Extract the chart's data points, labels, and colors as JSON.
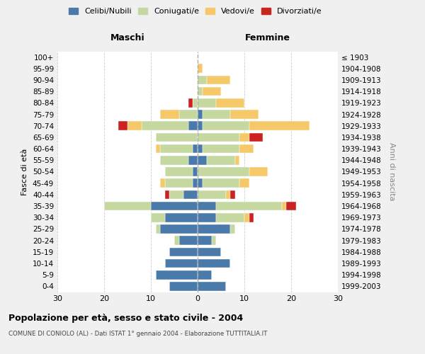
{
  "age_groups": [
    "0-4",
    "5-9",
    "10-14",
    "15-19",
    "20-24",
    "25-29",
    "30-34",
    "35-39",
    "40-44",
    "45-49",
    "50-54",
    "55-59",
    "60-64",
    "65-69",
    "70-74",
    "75-79",
    "80-84",
    "85-89",
    "90-94",
    "95-99",
    "100+"
  ],
  "birth_years": [
    "1999-2003",
    "1994-1998",
    "1989-1993",
    "1984-1988",
    "1979-1983",
    "1974-1978",
    "1969-1973",
    "1964-1968",
    "1959-1963",
    "1954-1958",
    "1949-1953",
    "1944-1948",
    "1939-1943",
    "1934-1938",
    "1929-1933",
    "1924-1928",
    "1919-1923",
    "1914-1918",
    "1909-1913",
    "1904-1908",
    "≤ 1903"
  ],
  "colors": {
    "celibi": "#4a7aaa",
    "coniugati": "#c5d8a0",
    "vedovi": "#f5c96a",
    "divorziati": "#cc2222"
  },
  "males": {
    "celibi": [
      6,
      9,
      7,
      6,
      4,
      8,
      7,
      10,
      3,
      1,
      1,
      2,
      1,
      0,
      2,
      0,
      0,
      0,
      0,
      0,
      0
    ],
    "coniugati": [
      0,
      0,
      0,
      0,
      1,
      1,
      3,
      10,
      3,
      6,
      6,
      6,
      7,
      9,
      10,
      4,
      1,
      0,
      0,
      0,
      0
    ],
    "vedovi": [
      0,
      0,
      0,
      0,
      0,
      0,
      0,
      0,
      0,
      1,
      0,
      0,
      1,
      0,
      3,
      4,
      0,
      0,
      0,
      0,
      0
    ],
    "divorziati": [
      0,
      0,
      0,
      0,
      0,
      0,
      0,
      0,
      1,
      0,
      0,
      0,
      0,
      0,
      2,
      0,
      1,
      0,
      0,
      0,
      0
    ]
  },
  "females": {
    "celibi": [
      6,
      3,
      7,
      5,
      3,
      7,
      4,
      4,
      0,
      1,
      0,
      2,
      1,
      0,
      1,
      1,
      0,
      0,
      0,
      0,
      0
    ],
    "coniugati": [
      0,
      0,
      0,
      0,
      1,
      1,
      6,
      14,
      6,
      8,
      11,
      6,
      8,
      9,
      10,
      6,
      4,
      1,
      2,
      0,
      0
    ],
    "vedovi": [
      0,
      0,
      0,
      0,
      0,
      0,
      1,
      1,
      1,
      2,
      4,
      1,
      3,
      2,
      13,
      6,
      6,
      4,
      5,
      1,
      0
    ],
    "divorziati": [
      0,
      0,
      0,
      0,
      0,
      0,
      1,
      2,
      1,
      0,
      0,
      0,
      0,
      3,
      0,
      0,
      0,
      0,
      0,
      0,
      0
    ]
  },
  "xlim": [
    -30,
    30
  ],
  "xticks": [
    -30,
    -20,
    -10,
    0,
    10,
    20,
    30
  ],
  "xticklabels": [
    "30",
    "20",
    "10",
    "0",
    "10",
    "20",
    "30"
  ],
  "title": "Popolazione per età, sesso e stato civile - 2004",
  "subtitle": "COMUNE DI CONIOLO (AL) - Dati ISTAT 1° gennaio 2004 - Elaborazione TUTTITALIA.IT",
  "ylabel_left": "Fasce di età",
  "ylabel_right": "Anni di nascita",
  "header_maschi": "Maschi",
  "header_femmine": "Femmine",
  "bg_color": "#f0f0f0",
  "plot_bg_color": "#ffffff",
  "grid_color": "#cccccc"
}
